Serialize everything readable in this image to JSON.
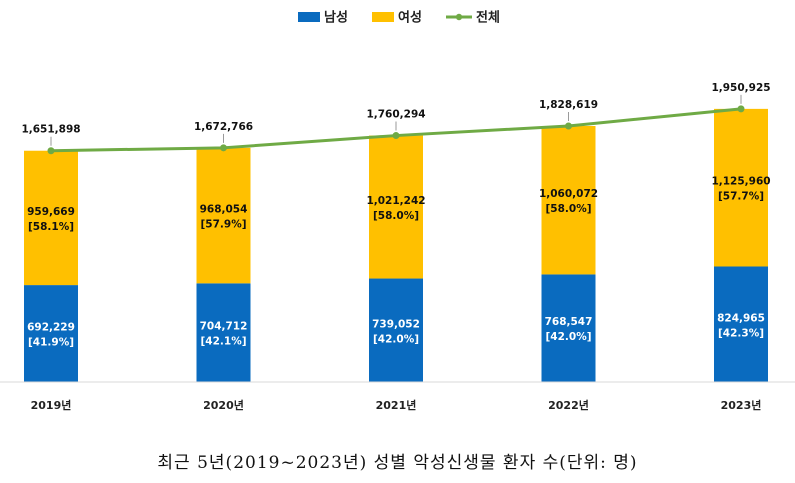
{
  "caption": "최근 5년(2019~2023년) 성별 악성신생물 환자 수(단위: 명)",
  "chart_data": {
    "type": "bar",
    "stacked": true,
    "categories": [
      "2019년",
      "2020년",
      "2021년",
      "2022년",
      "2023년"
    ],
    "series": [
      {
        "name": "남성",
        "color": "#0a6bbf",
        "values": [
          692229,
          704712,
          739052,
          768547,
          824965
        ],
        "value_labels": [
          "692,229",
          "704,712",
          "739,052",
          "768,547",
          "824,965"
        ],
        "share_labels": [
          "[41.9%]",
          "[42.1%]",
          "[42.0%]",
          "[42.0%]",
          "[42.3%]"
        ]
      },
      {
        "name": "여성",
        "color": "#ffc000",
        "values": [
          959669,
          968054,
          1021242,
          1060072,
          1125960
        ],
        "value_labels": [
          "959,669",
          "968,054",
          "1,021,242",
          "1,060,072",
          "1,125,960"
        ],
        "share_labels": [
          "[58.1%]",
          "[57.9%]",
          "[58.0%]",
          "[58.0%]",
          "[57.7%]"
        ]
      },
      {
        "name": "전체",
        "kind": "line",
        "color": "#6faa45",
        "values": [
          1651898,
          1672766,
          1760294,
          1828619,
          1950925
        ],
        "value_labels": [
          "1,651,898",
          "1,672,766",
          "1,760,294",
          "1,828,619",
          "1,950,925"
        ]
      }
    ],
    "ylim": [
      0,
      2300000
    ],
    "legend_position": "top-center",
    "grid": false
  }
}
